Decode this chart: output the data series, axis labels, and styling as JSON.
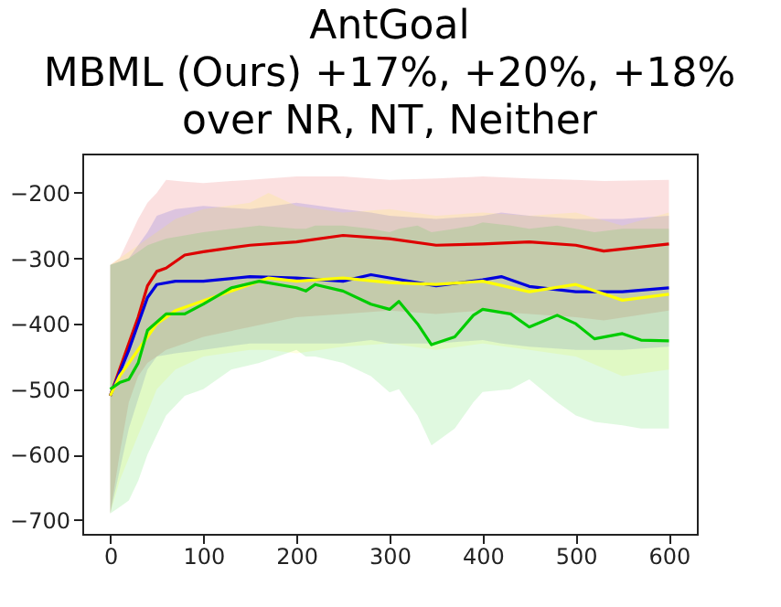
{
  "chart_data": {
    "type": "line",
    "title": "AntGoal\nMBML (Ours) +17%, +20%, +18%\nover NR, NT, Neither",
    "xlim": [
      -30,
      630
    ],
    "xticks": [
      0,
      100,
      200,
      300,
      400,
      500,
      600
    ],
    "ylim": [
      -721,
      -140
    ],
    "yticks": [
      -700,
      -600,
      -500,
      -400,
      -300,
      -200
    ],
    "grid": false,
    "series": [
      {
        "color": "#dd0000",
        "x": [
          0,
          10,
          20,
          30,
          40,
          50,
          60,
          80,
          100,
          150,
          200,
          250,
          300,
          350,
          400,
          450,
          500,
          530,
          600
        ],
        "values": [
          -510,
          -470,
          -430,
          -390,
          -342,
          -320,
          -315,
          -295,
          -290,
          -280,
          -275,
          -265,
          -270,
          -280,
          -278,
          -275,
          -280,
          -289,
          -278
        ],
        "lower": [
          -690,
          -600,
          -520,
          -480,
          -460,
          -450,
          -440,
          -430,
          -420,
          -405,
          -390,
          -385,
          -380,
          -385,
          -380,
          -385,
          -390,
          -395,
          -380
        ],
        "upper": [
          -310,
          -300,
          -270,
          -240,
          -215,
          -200,
          -180,
          -183,
          -185,
          -180,
          -175,
          -175,
          -180,
          -178,
          -175,
          -178,
          -180,
          -182,
          -180
        ]
      },
      {
        "color": "#0000dd",
        "x": [
          0,
          20,
          40,
          50,
          70,
          100,
          150,
          200,
          250,
          280,
          300,
          350,
          400,
          420,
          450,
          500,
          550,
          600
        ],
        "values": [
          -510,
          -440,
          -360,
          -340,
          -335,
          -335,
          -328,
          -330,
          -335,
          -325,
          -330,
          -342,
          -333,
          -328,
          -343,
          -351,
          -351,
          -345
        ],
        "lower": [
          -690,
          -560,
          -470,
          -450,
          -445,
          -440,
          -430,
          -430,
          -430,
          -425,
          -430,
          -430,
          -425,
          -430,
          -435,
          -440,
          -440,
          -435
        ],
        "upper": [
          -310,
          -300,
          -260,
          -235,
          -225,
          -220,
          -225,
          -215,
          -225,
          -230,
          -235,
          -240,
          -235,
          -230,
          -235,
          -240,
          -240,
          -235
        ]
      },
      {
        "color": "#ffff00",
        "x": [
          0,
          10,
          30,
          50,
          70,
          100,
          150,
          170,
          200,
          250,
          300,
          350,
          400,
          450,
          500,
          550,
          600
        ],
        "values": [
          -510,
          -480,
          -440,
          -400,
          -380,
          -365,
          -340,
          -330,
          -335,
          -330,
          -337,
          -340,
          -335,
          -351,
          -340,
          -364,
          -355
        ],
        "lower": [
          -690,
          -640,
          -570,
          -500,
          -470,
          -450,
          -440,
          -440,
          -445,
          -435,
          -430,
          -440,
          -430,
          -440,
          -450,
          -480,
          -470
        ],
        "upper": [
          -310,
          -300,
          -280,
          -260,
          -240,
          -225,
          -215,
          -200,
          -220,
          -230,
          -225,
          -235,
          -230,
          -235,
          -230,
          -250,
          -230
        ]
      },
      {
        "color": "#00cc00",
        "x": [
          0,
          10,
          20,
          30,
          40,
          60,
          80,
          100,
          130,
          160,
          200,
          210,
          220,
          250,
          280,
          300,
          310,
          330,
          345,
          370,
          390,
          400,
          430,
          450,
          480,
          500,
          520,
          550,
          570,
          600
        ],
        "values": [
          -500,
          -490,
          -485,
          -460,
          -410,
          -385,
          -385,
          -370,
          -345,
          -335,
          -345,
          -350,
          -340,
          -350,
          -370,
          -378,
          -366,
          -400,
          -432,
          -420,
          -387,
          -378,
          -385,
          -405,
          -387,
          -400,
          -423,
          -415,
          -425,
          -426
        ],
        "lower": [
          -690,
          -680,
          -670,
          -640,
          -600,
          -540,
          -510,
          -500,
          -470,
          -460,
          -440,
          -450,
          -450,
          -460,
          -480,
          -505,
          -500,
          -540,
          -586,
          -560,
          -520,
          -504,
          -500,
          -485,
          -520,
          -540,
          -550,
          -555,
          -560,
          -560
        ],
        "upper": [
          -310,
          -305,
          -300,
          -290,
          -280,
          -270,
          -265,
          -260,
          -255,
          -250,
          -255,
          -255,
          -250,
          -250,
          -255,
          -260,
          -255,
          -250,
          -260,
          -255,
          -250,
          -245,
          -250,
          -255,
          -250,
          -255,
          -260,
          -255,
          -255,
          -255
        ]
      }
    ]
  }
}
